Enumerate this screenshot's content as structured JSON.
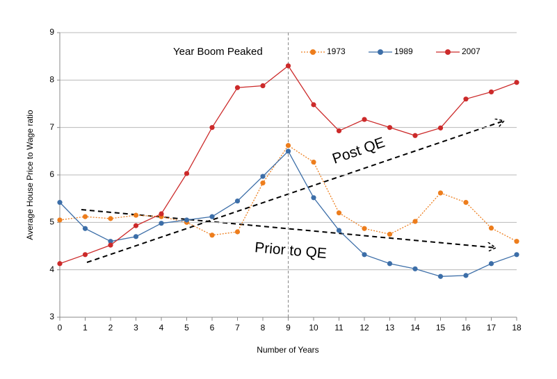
{
  "chart_data": {
    "type": "line",
    "ylabel": "Average House Price to Wage ratio",
    "xlabel": "Number of Years",
    "legend_title": "Year Boom Peaked",
    "annotations": [
      "Post QE",
      "Prior to QE"
    ],
    "x": [
      0,
      1,
      2,
      3,
      4,
      5,
      6,
      7,
      8,
      9,
      10,
      11,
      12,
      13,
      14,
      15,
      16,
      17,
      18
    ],
    "series": [
      {
        "name": "1973",
        "color": "#ed7d1c",
        "dashed": true,
        "values": [
          5.05,
          5.12,
          5.08,
          5.15,
          5.12,
          5.0,
          4.73,
          4.8,
          5.83,
          6.62,
          6.27,
          5.2,
          4.87,
          4.75,
          5.02,
          5.62,
          5.42,
          4.88,
          4.6
        ]
      },
      {
        "name": "1989",
        "color": "#3c6ea8",
        "dashed": false,
        "values": [
          5.42,
          4.87,
          4.6,
          4.7,
          4.98,
          5.05,
          5.12,
          5.45,
          5.97,
          6.5,
          5.52,
          4.83,
          4.32,
          4.13,
          4.02,
          3.86,
          3.88,
          4.13,
          4.32
        ]
      },
      {
        "name": "2007",
        "color": "#cc2a2a",
        "dashed": false,
        "values": [
          4.13,
          4.32,
          4.52,
          4.93,
          5.18,
          6.03,
          7.0,
          7.84,
          7.88,
          8.3,
          7.48,
          6.93,
          7.17,
          7.0,
          6.83,
          6.99,
          7.6,
          7.75,
          7.95
        ]
      }
    ],
    "xlim": [
      0,
      18
    ],
    "xticks": [
      0,
      1,
      2,
      3,
      4,
      5,
      6,
      7,
      8,
      9,
      10,
      11,
      12,
      13,
      14,
      15,
      16,
      17,
      18
    ],
    "ylim": [
      3,
      9
    ],
    "yticks": [
      3,
      4,
      5,
      6,
      7,
      8,
      9
    ],
    "vline": 9,
    "grid": true,
    "legend": "top-right"
  }
}
